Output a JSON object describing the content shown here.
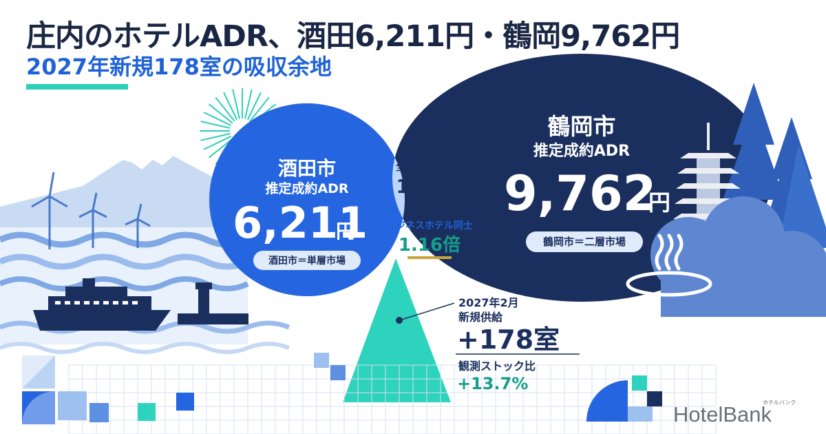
{
  "header": {
    "title": "庄内のホテルADR、酒田6,211円・鶴岡9,762円",
    "subtitle": "2027年新規178室の吸収余地"
  },
  "sakata": {
    "city": "酒田市",
    "metric": "推定成約ADR",
    "value": "6,211",
    "unit": "円",
    "market": "酒田市＝単層市場"
  },
  "tsuruoka": {
    "city": "鶴岡市",
    "metric": "推定成約ADR",
    "value": "9,762",
    "unit": "円",
    "market": "鶴岡市＝二層市場"
  },
  "comparison": {
    "all_label": "全業態の単価差",
    "all_value": "1.57倍",
    "arrow": "↓",
    "biz_label": "ビジネスホテル同士",
    "biz_value": "1.16倍"
  },
  "supply": {
    "date": "2027年2月",
    "label": "新規供給",
    "rooms": "+178室",
    "ratio_label": "観測ストック比",
    "ratio_value": "+13.7%"
  },
  "brand": {
    "logo": "HotelBank",
    "logo_kana": "ホテルバンク"
  },
  "colors": {
    "navy": "#1b2f5e",
    "blue": "#2566e0",
    "light_blue": "#bcd6f7",
    "teal": "#2ed3bd",
    "gold": "#c9a43a"
  }
}
